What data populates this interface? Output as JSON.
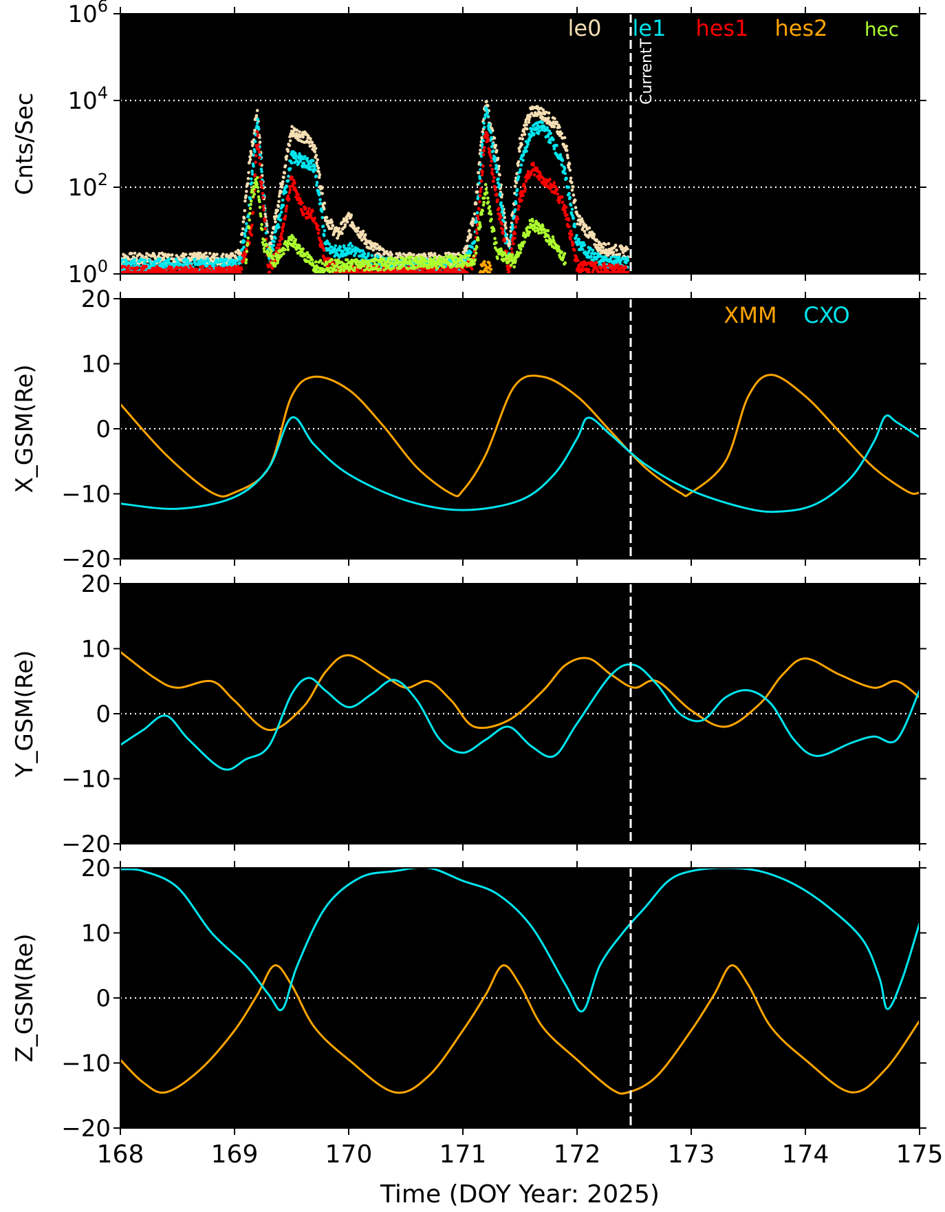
{
  "figure": {
    "xlabel": "Time (DOY Year: 2025)",
    "x_ticks": [
      168,
      169,
      170,
      171,
      172,
      173,
      174,
      175
    ],
    "xlim": [
      168,
      175
    ],
    "current_time_doy": 172.47,
    "current_time_label": "CurrentT",
    "colors": {
      "background": "#000000",
      "grid": "#ffffff",
      "current_line": "#ffffff"
    }
  },
  "chart_data": [
    {
      "type": "scatter",
      "ylabel": "Cnts/Sec",
      "yscale": "log",
      "ylim": [
        1,
        1000000
      ],
      "y_ticks": [
        {
          "value": 1,
          "base": "10",
          "exp": "0"
        },
        {
          "value": 100,
          "base": "10",
          "exp": "2"
        },
        {
          "value": 10000,
          "base": "10",
          "exp": "4"
        },
        {
          "value": 1000000,
          "base": "10",
          "exp": "6"
        }
      ],
      "grid_lines": [
        100,
        10000
      ],
      "data_end_doy": 172.47,
      "legend_placement": "top-right",
      "series": [
        {
          "name": "le0",
          "color": "#f5deb3",
          "x": [
            168.0,
            169.0,
            169.05,
            169.12,
            169.2,
            169.3,
            169.4,
            169.5,
            169.6,
            169.7,
            169.8,
            169.9,
            170.0,
            170.2,
            170.4,
            170.6,
            170.8,
            171.0,
            171.1,
            171.2,
            171.3,
            171.4,
            171.5,
            171.6,
            171.7,
            171.8,
            171.9,
            172.0,
            172.2,
            172.45
          ],
          "y": [
            2.2,
            2.2,
            3,
            200,
            6000,
            3,
            80,
            2000,
            1500,
            900,
            20,
            8,
            20,
            4,
            2.2,
            2.2,
            2.2,
            2.2,
            20,
            10000,
            500,
            3,
            1000,
            6000,
            5000,
            3000,
            1000,
            20,
            4,
            3
          ]
        },
        {
          "name": "le1",
          "color": "#00e5ee",
          "x": [
            168.0,
            169.0,
            169.05,
            169.12,
            169.2,
            169.3,
            169.4,
            169.5,
            169.6,
            169.7,
            169.8,
            169.9,
            170.0,
            170.2,
            170.4,
            170.6,
            170.8,
            171.0,
            171.1,
            171.2,
            171.3,
            171.4,
            171.5,
            171.6,
            171.7,
            171.8,
            171.9,
            172.0,
            172.2,
            172.45
          ],
          "y": [
            1.6,
            1.6,
            2,
            20,
            4000,
            2,
            20,
            500,
            400,
            300,
            5,
            3,
            4,
            2,
            1.6,
            1.6,
            1.6,
            1.6,
            5,
            7000,
            200,
            2,
            300,
            2000,
            2500,
            1000,
            200,
            5,
            2,
            1.8
          ]
        },
        {
          "name": "hes1",
          "color": "#ff0000",
          "x": [
            168.0,
            169.0,
            169.05,
            169.15,
            169.2,
            169.3,
            169.4,
            169.5,
            169.6,
            169.7,
            169.8,
            169.9,
            170.0,
            170.5,
            171.0,
            171.1,
            171.2,
            171.3,
            171.4,
            171.5,
            171.6,
            171.7,
            171.8,
            171.9,
            172.0,
            172.45
          ],
          "y": [
            1.1,
            1.1,
            1.2,
            10,
            1500,
            1.2,
            5,
            150,
            30,
            20,
            2,
            1.2,
            1.1,
            1.1,
            1.1,
            2,
            2000,
            50,
            1.2,
            50,
            300,
            150,
            100,
            30,
            1.5,
            1.1
          ]
        },
        {
          "name": "hes2",
          "color": "#ffa500",
          "x": [
            171.15,
            171.2,
            171.25
          ],
          "y": [
            1.1,
            1.5,
            1.2
          ]
        },
        {
          "name": "hec",
          "color": "#adff2f",
          "x": [
            169.1,
            169.15,
            169.2,
            169.25,
            169.35,
            169.5,
            169.6,
            169.7,
            171.1,
            171.2,
            171.3,
            171.45,
            171.55,
            171.6,
            171.7,
            171.8,
            171.9
          ],
          "y": [
            2,
            60,
            150,
            5,
            2,
            6,
            3,
            1.5,
            2,
            100,
            3,
            2,
            8,
            15,
            10,
            5,
            2
          ]
        }
      ]
    },
    {
      "type": "line",
      "ylabel": "X_GSM(Re)",
      "ylim": [
        -20,
        20
      ],
      "y_ticks": [
        -20,
        -10,
        0,
        10,
        20
      ],
      "grid_lines": [
        0
      ],
      "legend_placement": "top-right",
      "series": [
        {
          "name": "XMM",
          "color": "#ffa500",
          "x": [
            168.0,
            168.4,
            168.8,
            169.0,
            169.3,
            169.5,
            169.7,
            170.0,
            170.3,
            170.6,
            170.9,
            171.0,
            171.2,
            171.45,
            171.7,
            172.0,
            172.3,
            172.6,
            172.9,
            173.0,
            173.3,
            173.5,
            173.7,
            174.0,
            174.3,
            174.6,
            174.9,
            175.0
          ],
          "y": [
            3.8,
            -4,
            -9.8,
            -9.8,
            -6,
            5,
            8,
            6,
            0.5,
            -6,
            -10,
            -9.5,
            -4,
            6.5,
            8,
            5,
            -0.5,
            -6,
            -9.8,
            -9.8,
            -5,
            5,
            8.3,
            5,
            -0.5,
            -6,
            -9.7,
            -9.8
          ]
        },
        {
          "name": "CXO",
          "color": "#00e5ee",
          "x": [
            168.0,
            168.5,
            169.0,
            169.3,
            169.5,
            169.7,
            170.0,
            170.5,
            171.0,
            171.5,
            171.8,
            172.0,
            172.1,
            172.3,
            172.6,
            173.0,
            173.5,
            173.8,
            174.1,
            174.4,
            174.6,
            174.7,
            174.8,
            175.0
          ],
          "y": [
            -11.5,
            -12.3,
            -10.5,
            -6,
            1.7,
            -2.5,
            -7,
            -11,
            -12.5,
            -11,
            -7,
            -1.5,
            1.7,
            -1,
            -5.5,
            -9.5,
            -12.3,
            -12.7,
            -11.5,
            -7.5,
            -2,
            1.9,
            1,
            -1.3
          ]
        }
      ]
    },
    {
      "type": "line",
      "ylabel": "Y_GSM(Re)",
      "ylim": [
        -20,
        20
      ],
      "y_ticks": [
        -20,
        -10,
        0,
        10,
        20
      ],
      "grid_lines": [
        0
      ],
      "series": [
        {
          "name": "XMM",
          "color": "#ffa500",
          "x": [
            168.0,
            168.3,
            168.5,
            168.8,
            169.0,
            169.3,
            169.6,
            169.8,
            170.0,
            170.3,
            170.5,
            170.7,
            170.9,
            171.1,
            171.4,
            171.7,
            171.9,
            172.1,
            172.3,
            172.5,
            172.7,
            173.0,
            173.3,
            173.6,
            173.8,
            174.0,
            174.3,
            174.6,
            174.8,
            175.0
          ],
          "y": [
            9.5,
            5.5,
            4,
            5,
            2,
            -2.5,
            1,
            6.5,
            9,
            6,
            4,
            5,
            2,
            -2,
            -1,
            3.5,
            7.5,
            8.5,
            6,
            4,
            5,
            0.5,
            -2,
            1.5,
            6,
            8.5,
            6,
            4,
            5,
            2.5
          ]
        },
        {
          "name": "CXO",
          "color": "#00e5ee",
          "x": [
            168.0,
            168.2,
            168.4,
            168.6,
            168.9,
            169.1,
            169.3,
            169.5,
            169.65,
            169.8,
            170.0,
            170.2,
            170.4,
            170.6,
            170.8,
            171.0,
            171.2,
            171.4,
            171.6,
            171.8,
            172.0,
            172.3,
            172.5,
            172.7,
            172.9,
            173.1,
            173.3,
            173.5,
            173.7,
            173.9,
            174.1,
            174.4,
            174.6,
            174.8,
            175.0
          ],
          "y": [
            -4.8,
            -2.5,
            -0.3,
            -4,
            -8.5,
            -7,
            -5,
            3,
            5.5,
            3.5,
            1,
            3,
            5.2,
            2,
            -4,
            -6,
            -4,
            -2,
            -5,
            -6.5,
            -1.5,
            6,
            7.5,
            4.5,
            0,
            -1,
            2.5,
            3.6,
            1.5,
            -4,
            -6.5,
            -4.5,
            -3.5,
            -4,
            3.6
          ]
        }
      ]
    },
    {
      "type": "line",
      "ylabel": "Z_GSM(Re)",
      "ylim": [
        -20,
        20
      ],
      "y_ticks": [
        -20,
        -10,
        0,
        10,
        20
      ],
      "grid_lines": [
        0
      ],
      "series": [
        {
          "name": "XMM",
          "color": "#ffa500",
          "x": [
            168.0,
            168.2,
            168.4,
            168.7,
            169.0,
            169.2,
            169.35,
            169.5,
            169.7,
            170.0,
            170.4,
            170.7,
            171.0,
            171.2,
            171.35,
            171.5,
            171.7,
            172.0,
            172.3,
            172.45,
            172.7,
            173.0,
            173.2,
            173.35,
            173.5,
            173.7,
            174.0,
            174.4,
            174.7,
            175.0
          ],
          "y": [
            -9.5,
            -13,
            -14.5,
            -11,
            -5,
            0.5,
            5,
            2,
            -4.5,
            -9.5,
            -14.5,
            -12,
            -5,
            0.5,
            5,
            2,
            -4.5,
            -9.5,
            -14,
            -14.5,
            -12,
            -5,
            0.5,
            5,
            2,
            -4.5,
            -9.5,
            -14.5,
            -11,
            -3.5
          ]
        },
        {
          "name": "CXO",
          "color": "#00e5ee",
          "x": [
            168.0,
            168.2,
            168.5,
            168.8,
            169.1,
            169.3,
            169.42,
            169.55,
            169.8,
            170.1,
            170.4,
            170.7,
            171.0,
            171.3,
            171.6,
            171.9,
            172.05,
            172.2,
            172.4,
            172.6,
            172.8,
            173.0,
            173.3,
            173.6,
            173.9,
            174.2,
            174.5,
            174.65,
            174.72,
            174.85,
            175.0
          ],
          "y": [
            19.8,
            19.5,
            17,
            10,
            5,
            0.5,
            -1.7,
            5,
            14,
            18.5,
            19.5,
            20,
            18,
            16,
            11,
            2,
            -2,
            5,
            10,
            14,
            18,
            19.5,
            20,
            19.5,
            17.5,
            14,
            9,
            3,
            -1.7,
            3,
            11.5
          ]
        }
      ]
    }
  ]
}
